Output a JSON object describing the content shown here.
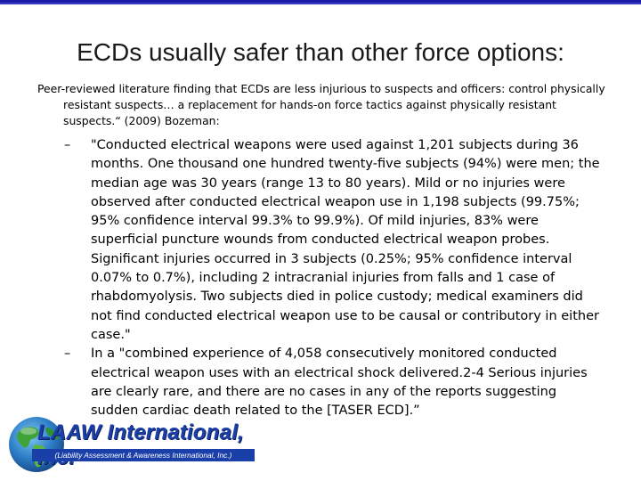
{
  "slide": {
    "title": "ECDs usually safer than other force options:",
    "intro": "Peer-reviewed literature finding that ECDs are less injurious to suspects and officers: control physically resistant suspects… a replacement for hands-on force tactics against physically resistant suspects.“ (2009) Bozeman:",
    "bullets": [
      {
        "dash": "–",
        "text": "\"Conducted electrical weapons were used against 1,201 subjects during 36 months. One thousand one hundred twenty-five subjects (94%) were men; the median age was 30 years (range 13 to 80 years). Mild or no injuries were observed after conducted electrical weapon use in 1,198 subjects (99.75%; 95% confidence interval 99.3% to 99.9%). Of mild injuries, 83% were superficial puncture wounds from conducted electrical weapon probes. Significant injuries occurred in 3 subjects (0.25%; 95% confidence interval 0.07% to 0.7%), including 2 intracranial injuries from falls and 1 case of rhabdomyolysis. Two subjects died in police custody; medical examiners did not find conducted electrical weapon use to be causal or contributory in either case.\""
      },
      {
        "dash": "–",
        "text": "In a \"combined experience of 4,058 consecutively monitored conducted electrical weapon uses with an electrical shock delivered.2-4 Serious injuries are clearly rare, and there are no cases in any of the reports suggesting sudden cardiac death related to the [TASER ECD].”"
      }
    ]
  },
  "logo": {
    "name": "LAAW International, Inc.",
    "subtitle": "(Liability Assessment & Awareness International, Inc.)",
    "brand_color": "#1b3fa8",
    "icon": "globe-icon"
  },
  "colors": {
    "top_border": "#1a1aa6"
  }
}
